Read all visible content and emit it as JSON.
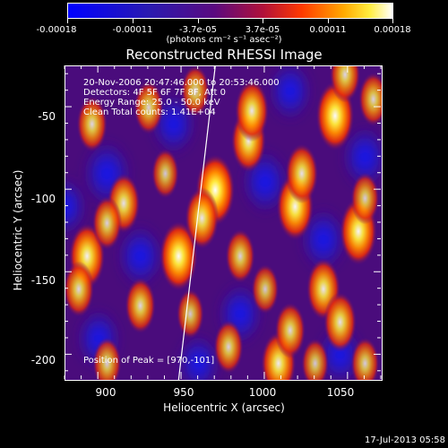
{
  "colorbar": {
    "tick_labels": [
      "-0.00018",
      "-0.00011",
      "-3.7e-05",
      "3.7e-05",
      "0.00011",
      "0.00018"
    ],
    "units": "(photons cm⁻² s⁻¹ asec⁻²)"
  },
  "plot": {
    "title": "Reconstructed RHESSI Image",
    "info_lines": [
      "20-Nov-2006 20:47:46.000 to 20:53:46.000",
      "Detectors: 4F 5F 6F 7F 8F, Att 0",
      "Energy Range: 25.0 - 50.0 keV",
      "Clean     Total counts: 1.41E+04"
    ],
    "peak_label": "Position of Peak = [970,-101]"
  },
  "chart_data": {
    "type": "heatmap",
    "title": "Reconstructed RHESSI Image",
    "xlabel": "Heliocentric X (arcsec)",
    "ylabel": "Heliocentric Y (arcsec)",
    "xlim": [
      880,
      1070
    ],
    "ylim": [
      -215,
      -25
    ],
    "x_ticks": [
      "900",
      "950",
      "1000",
      "1050"
    ],
    "y_ticks": [
      "-50",
      "-100",
      "-150",
      "-200"
    ],
    "colorbar_range": [
      -0.00018,
      0.00018
    ],
    "peak": [
      970,
      -101
    ],
    "colors": {
      "background": "#000000",
      "low": "#0000ff",
      "mid": "#4a0a7a",
      "high": "#ffffff",
      "warm": "#ff5a00",
      "hot": "#ffd400"
    },
    "blobs": [
      [
        970,
        -100,
        1.0
      ],
      [
        948,
        -140,
        0.95
      ],
      [
        962,
        -117,
        0.75
      ],
      [
        990,
        -70,
        0.8
      ],
      [
        992,
        -52,
        0.75
      ],
      [
        1018,
        -110,
        0.9
      ],
      [
        1022,
        -90,
        0.7
      ],
      [
        1042,
        -55,
        0.95
      ],
      [
        1048,
        -30,
        0.6
      ],
      [
        1056,
        -125,
        0.9
      ],
      [
        1060,
        -105,
        0.5
      ],
      [
        1035,
        -160,
        0.75
      ],
      [
        1045,
        -180,
        0.7
      ],
      [
        893,
        -140,
        0.85
      ],
      [
        888,
        -160,
        0.6
      ],
      [
        915,
        -108,
        0.7
      ],
      [
        905,
        -120,
        0.55
      ],
      [
        896,
        -60,
        0.6
      ],
      [
        930,
        -50,
        0.55
      ],
      [
        925,
        -170,
        0.6
      ],
      [
        985,
        -140,
        0.55
      ],
      [
        978,
        -195,
        0.55
      ],
      [
        1008,
        -205,
        0.8
      ],
      [
        1015,
        -185,
        0.6
      ],
      [
        955,
        -175,
        0.45
      ],
      [
        1065,
        -45,
        0.55
      ],
      [
        1060,
        -205,
        0.5
      ],
      [
        905,
        -205,
        0.5
      ],
      [
        958,
        -40,
        0.5
      ],
      [
        1000,
        -160,
        0.45
      ],
      [
        940,
        -90,
        0.45
      ],
      [
        1030,
        -205,
        0.45
      ]
    ],
    "voids": [
      [
        905,
        -90,
        0.7
      ],
      [
        925,
        -140,
        0.6
      ],
      [
        945,
        -60,
        0.55
      ],
      [
        1000,
        -95,
        0.65
      ],
      [
        1035,
        -130,
        0.6
      ],
      [
        1060,
        -80,
        0.6
      ],
      [
        985,
        -175,
        0.55
      ],
      [
        900,
        -190,
        0.5
      ],
      [
        1045,
        -200,
        0.5
      ],
      [
        960,
        -205,
        0.45
      ],
      [
        1015,
        -40,
        0.5
      ],
      [
        880,
        -110,
        0.45
      ]
    ],
    "limb_line": {
      "x1": 948,
      "y1": -215,
      "x2": 970,
      "y2": -25
    }
  },
  "footer": {
    "timestamp": "17-Jul-2013 05:58"
  }
}
